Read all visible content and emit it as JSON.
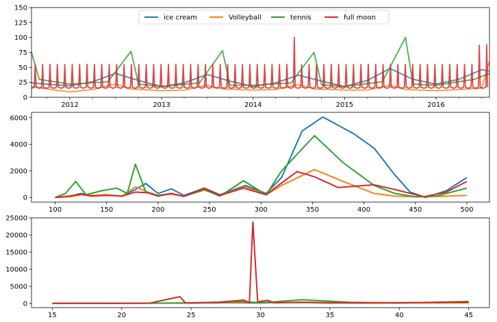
{
  "chart_data": [
    {
      "type": "line",
      "x_range": [
        "2011-08-01",
        "2016-08-01"
      ],
      "xticks": [
        "2012",
        "2013",
        "2014",
        "2015",
        "2016"
      ],
      "xtick_values": [
        "2012-01-01",
        "2013-01-01",
        "2014-01-01",
        "2015-01-01",
        "2016-01-01"
      ],
      "ylim": [
        0,
        150
      ],
      "yticks": [
        0,
        25,
        50,
        75,
        100,
        125,
        150
      ],
      "legend": {
        "placement": "upper-center",
        "columns": 4
      },
      "grid": false,
      "series": [
        {
          "name": "ice cream",
          "color": "#1f77b4",
          "points": [
            [
              "2011-08-01",
              24
            ],
            [
              "2011-10-01",
              22
            ],
            [
              "2012-01-01",
              19
            ],
            [
              "2012-04-01",
              26
            ],
            [
              "2012-07-01",
              40
            ],
            [
              "2012-10-01",
              28
            ],
            [
              "2013-01-01",
              18
            ],
            [
              "2013-04-01",
              24
            ],
            [
              "2013-07-01",
              38
            ],
            [
              "2013-10-01",
              27
            ],
            [
              "2014-01-01",
              18
            ],
            [
              "2014-04-01",
              24
            ],
            [
              "2014-07-01",
              37
            ],
            [
              "2014-10-01",
              27
            ],
            [
              "2015-01-01",
              18
            ],
            [
              "2015-04-01",
              28
            ],
            [
              "2015-07-01",
              48
            ],
            [
              "2015-10-01",
              30
            ],
            [
              "2016-01-01",
              22
            ],
            [
              "2016-04-01",
              30
            ],
            [
              "2016-07-01",
              46
            ],
            [
              "2016-08-01",
              44
            ]
          ]
        },
        {
          "name": "Volleyball",
          "color": "#ff7f0e",
          "points": [
            [
              "2011-08-01",
              18
            ],
            [
              "2011-11-01",
              12
            ],
            [
              "2012-01-01",
              9
            ],
            [
              "2012-04-01",
              13
            ],
            [
              "2012-07-01",
              22
            ],
            [
              "2012-09-01",
              14
            ],
            [
              "2013-01-01",
              11
            ],
            [
              "2013-04-01",
              12
            ],
            [
              "2013-07-01",
              20
            ],
            [
              "2013-09-01",
              14
            ],
            [
              "2014-01-01",
              12
            ],
            [
              "2014-04-01",
              13
            ],
            [
              "2014-07-01",
              21
            ],
            [
              "2014-09-01",
              14
            ],
            [
              "2015-01-01",
              12
            ],
            [
              "2015-04-01",
              12
            ],
            [
              "2015-07-01",
              20
            ],
            [
              "2015-09-01",
              13
            ],
            [
              "2016-01-01",
              11
            ],
            [
              "2016-04-01",
              13
            ],
            [
              "2016-07-01",
              15
            ],
            [
              "2016-08-01",
              60
            ]
          ]
        },
        {
          "name": "tennis",
          "color": "#2ca02c",
          "points": [
            [
              "2011-08-01",
              75
            ],
            [
              "2011-09-01",
              30
            ],
            [
              "2012-01-01",
              22
            ],
            [
              "2012-06-01",
              26
            ],
            [
              "2012-09-01",
              77
            ],
            [
              "2012-10-01",
              22
            ],
            [
              "2013-01-01",
              18
            ],
            [
              "2013-06-01",
              24
            ],
            [
              "2013-09-01",
              78
            ],
            [
              "2013-10-01",
              20
            ],
            [
              "2014-01-01",
              20
            ],
            [
              "2014-06-01",
              24
            ],
            [
              "2014-09-01",
              75
            ],
            [
              "2014-10-01",
              21
            ],
            [
              "2015-01-01",
              18
            ],
            [
              "2015-06-01",
              26
            ],
            [
              "2015-09-01",
              100
            ],
            [
              "2015-10-01",
              22
            ],
            [
              "2016-01-01",
              20
            ],
            [
              "2016-06-01",
              30
            ],
            [
              "2016-08-01",
              40
            ]
          ]
        },
        {
          "name": "full moon",
          "color": "#d62728",
          "periodic_days": 29.53,
          "peak_value": 55,
          "base_value": 15,
          "extra_peaks": [
            [
              "2014-06-12",
              100
            ],
            [
              "2016-06-20",
              87
            ],
            [
              "2016-07-20",
              88
            ]
          ]
        }
      ]
    },
    {
      "type": "line",
      "xlim": [
        77,
        522
      ],
      "xticks": [
        100,
        150,
        200,
        250,
        300,
        350,
        400,
        450,
        500
      ],
      "ylim": [
        -350,
        6400
      ],
      "yticks": [
        0,
        2000,
        4000,
        6000
      ],
      "grid": false,
      "series": [
        {
          "color": "#1f77b4",
          "points": [
            [
              100,
              0
            ],
            [
              115,
              100
            ],
            [
              125,
              300
            ],
            [
              135,
              150
            ],
            [
              150,
              200
            ],
            [
              165,
              100
            ],
            [
              178,
              600
            ],
            [
              188,
              1050
            ],
            [
              200,
              300
            ],
            [
              213,
              650
            ],
            [
              225,
              150
            ],
            [
              245,
              700
            ],
            [
              260,
              200
            ],
            [
              285,
              900
            ],
            [
              305,
              300
            ],
            [
              320,
              1500
            ],
            [
              340,
              5000
            ],
            [
              360,
              6050
            ],
            [
              390,
              4800
            ],
            [
              410,
              3700
            ],
            [
              430,
              1700
            ],
            [
              445,
              400
            ],
            [
              460,
              0
            ],
            [
              480,
              500
            ],
            [
              500,
              1500
            ]
          ]
        },
        {
          "color": "#ff7f0e",
          "points": [
            [
              100,
              0
            ],
            [
              115,
              50
            ],
            [
              125,
              200
            ],
            [
              135,
              150
            ],
            [
              150,
              200
            ],
            [
              165,
              100
            ],
            [
              178,
              800
            ],
            [
              190,
              400
            ],
            [
              200,
              150
            ],
            [
              213,
              250
            ],
            [
              225,
              100
            ],
            [
              245,
              550
            ],
            [
              260,
              150
            ],
            [
              285,
              800
            ],
            [
              305,
              200
            ],
            [
              320,
              900
            ],
            [
              352,
              2100
            ],
            [
              380,
              1200
            ],
            [
              410,
              300
            ],
            [
              430,
              100
            ],
            [
              450,
              50
            ],
            [
              470,
              80
            ],
            [
              500,
              150
            ]
          ]
        },
        {
          "color": "#2ca02c",
          "points": [
            [
              100,
              0
            ],
            [
              110,
              300
            ],
            [
              120,
              1200
            ],
            [
              130,
              200
            ],
            [
              145,
              500
            ],
            [
              160,
              700
            ],
            [
              170,
              300
            ],
            [
              178,
              2500
            ],
            [
              188,
              400
            ],
            [
              200,
              150
            ],
            [
              213,
              300
            ],
            [
              225,
              80
            ],
            [
              245,
              600
            ],
            [
              260,
              100
            ],
            [
              283,
              1250
            ],
            [
              305,
              200
            ],
            [
              320,
              2000
            ],
            [
              352,
              4650
            ],
            [
              380,
              2600
            ],
            [
              410,
              900
            ],
            [
              430,
              300
            ],
            [
              450,
              50
            ],
            [
              470,
              100
            ],
            [
              500,
              700
            ]
          ]
        },
        {
          "color": "#d62728",
          "points": [
            [
              100,
              0
            ],
            [
              115,
              120
            ],
            [
              125,
              250
            ],
            [
              135,
              100
            ],
            [
              150,
              150
            ],
            [
              165,
              100
            ],
            [
              178,
              400
            ],
            [
              190,
              350
            ],
            [
              200,
              100
            ],
            [
              213,
              300
            ],
            [
              225,
              80
            ],
            [
              245,
              700
            ],
            [
              260,
              150
            ],
            [
              283,
              700
            ],
            [
              305,
              200
            ],
            [
              315,
              800
            ],
            [
              335,
              1950
            ],
            [
              352,
              1550
            ],
            [
              375,
              750
            ],
            [
              410,
              950
            ],
            [
              430,
              600
            ],
            [
              458,
              50
            ],
            [
              480,
              400
            ],
            [
              500,
              1200
            ]
          ]
        }
      ]
    },
    {
      "type": "line",
      "xlim": [
        13.5,
        46.5
      ],
      "xticks": [
        15,
        20,
        25,
        30,
        35,
        40,
        45
      ],
      "ylim": [
        -1200,
        25000
      ],
      "yticks": [
        0,
        5000,
        10000,
        15000,
        20000,
        25000
      ],
      "grid": false,
      "series": [
        {
          "color": "#1f77b4",
          "points": [
            [
              15,
              50
            ],
            [
              24,
              100
            ],
            [
              28,
              200
            ],
            [
              29.5,
              150
            ],
            [
              33,
              400
            ],
            [
              37,
              150
            ],
            [
              45,
              300
            ]
          ]
        },
        {
          "color": "#ff7f0e",
          "points": [
            [
              15,
              80
            ],
            [
              20,
              60
            ],
            [
              24,
              120
            ],
            [
              28,
              300
            ],
            [
              30,
              300
            ],
            [
              33,
              350
            ],
            [
              38,
              100
            ],
            [
              45,
              200
            ]
          ]
        },
        {
          "color": "#2ca02c",
          "points": [
            [
              15,
              100
            ],
            [
              20,
              80
            ],
            [
              24,
              150
            ],
            [
              27,
              300
            ],
            [
              28.5,
              600
            ],
            [
              30,
              200
            ],
            [
              33,
              1100
            ],
            [
              36.5,
              350
            ],
            [
              40,
              150
            ],
            [
              45,
              600
            ]
          ]
        },
        {
          "color": "#d62728",
          "points": [
            [
              15,
              50
            ],
            [
              22,
              80
            ],
            [
              24.2,
              2000
            ],
            [
              24.6,
              150
            ],
            [
              27,
              400
            ],
            [
              28.8,
              1000
            ],
            [
              29.2,
              200
            ],
            [
              29.45,
              23800
            ],
            [
              29.8,
              500
            ],
            [
              30.5,
              900
            ],
            [
              31,
              200
            ],
            [
              33,
              300
            ],
            [
              35,
              150
            ],
            [
              45,
              350
            ]
          ]
        }
      ]
    }
  ]
}
